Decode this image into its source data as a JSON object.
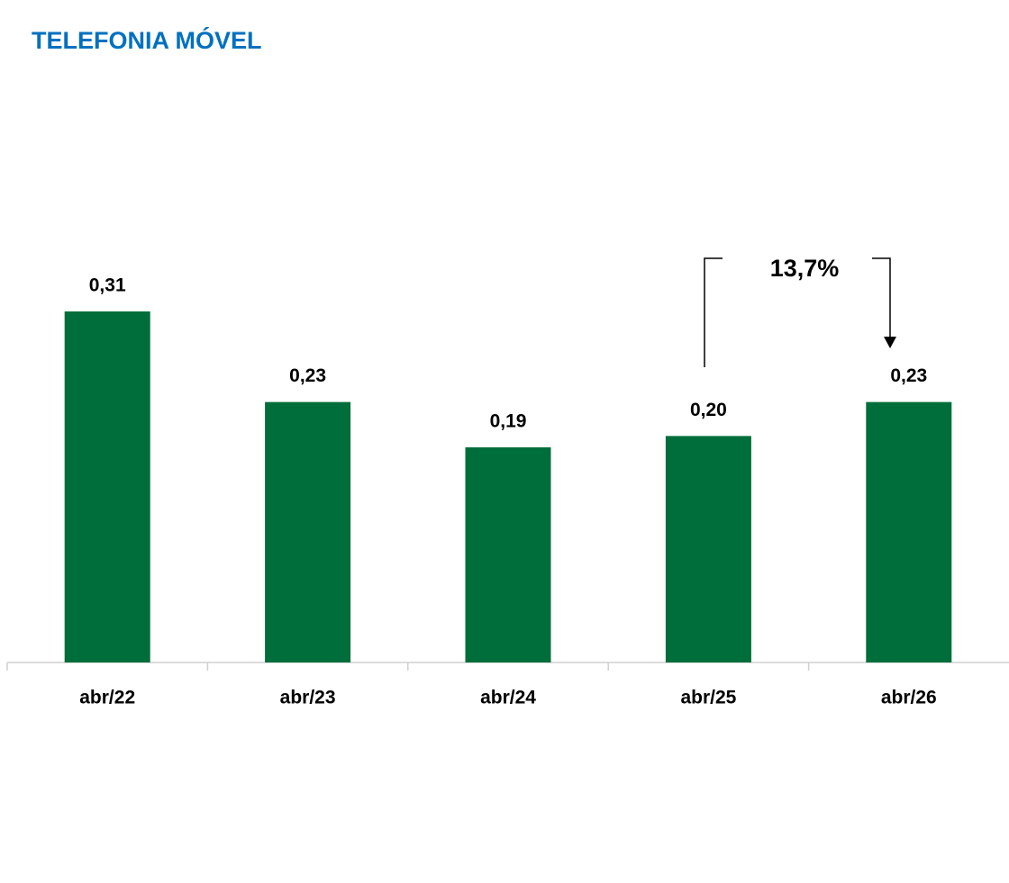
{
  "chart_data": {
    "type": "bar",
    "title": "TELEFONIA MÓVEL",
    "categories": [
      "abr/22",
      "abr/23",
      "abr/24",
      "abr/25",
      "abr/26"
    ],
    "values": [
      0.31,
      0.23,
      0.19,
      0.2,
      0.23
    ],
    "value_labels": [
      "0,31",
      "0,23",
      "0,19",
      "0,20",
      "0,23"
    ],
    "color": "#006e3a",
    "annotation": "13,7%"
  }
}
